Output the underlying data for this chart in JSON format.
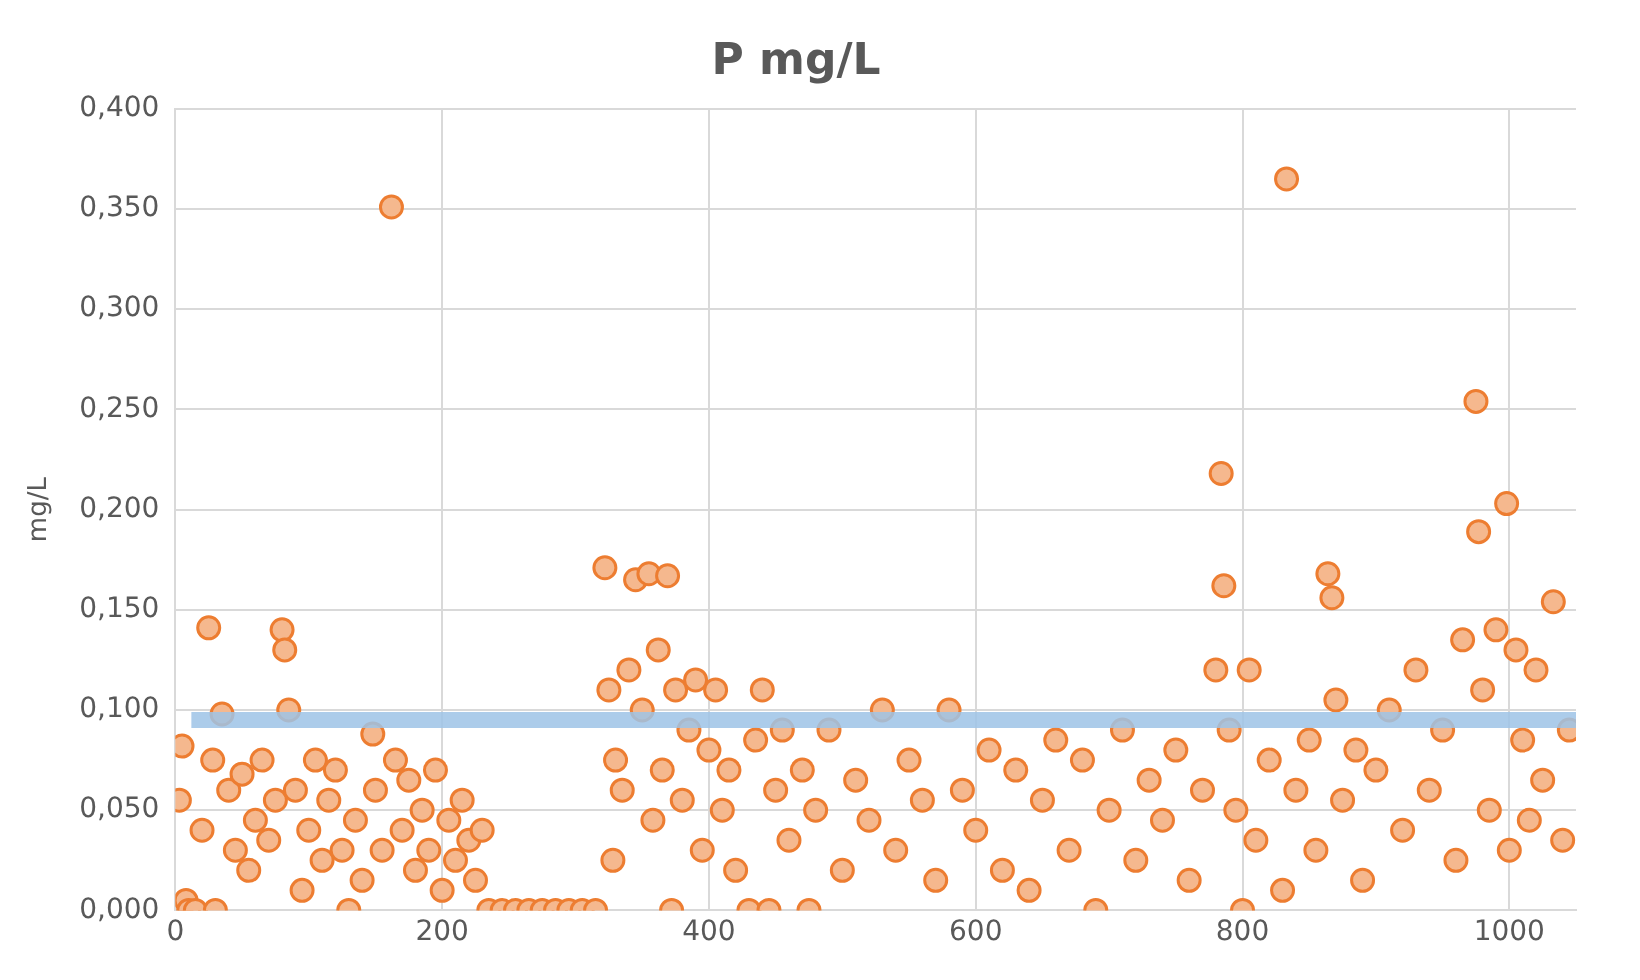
{
  "chart_data": {
    "type": "scatter",
    "title": "P mg/L",
    "ylabel": "mg/L",
    "marker": "circle",
    "grid": true,
    "legend": false,
    "xlim": [
      0,
      1050
    ],
    "xticks": [
      0,
      200,
      400,
      600,
      800,
      1000
    ],
    "ylim": [
      0,
      0.4
    ],
    "yticks": [
      {
        "value": 0,
        "label": "0,000"
      },
      {
        "value": 0.05,
        "label": "0,050"
      },
      {
        "value": 0.1,
        "label": "0,100"
      },
      {
        "value": 0.15,
        "label": "0,150"
      },
      {
        "value": 0.2,
        "label": "0,200"
      },
      {
        "value": 0.25,
        "label": "0,250"
      },
      {
        "value": 0.3,
        "label": "0,300"
      },
      {
        "value": 0.35,
        "label": "0,350"
      },
      {
        "value": 0.4,
        "label": "0,400"
      }
    ],
    "ref_lines": [
      {
        "axis": "y",
        "value": 0.095,
        "color": "#9dc3e6"
      }
    ],
    "series": [
      {
        "color": "#ed7d31",
        "x": [
          3,
          5,
          8,
          10,
          15,
          20,
          25,
          28,
          30,
          35,
          40,
          45,
          50,
          55,
          60,
          65,
          70,
          75,
          80,
          82,
          85,
          90,
          95,
          100,
          105,
          110,
          115,
          120,
          125,
          130,
          135,
          140,
          148,
          150,
          155,
          162,
          165,
          170,
          175,
          180,
          185,
          190,
          195,
          200,
          205,
          210,
          215,
          220,
          225,
          230,
          235,
          245,
          255,
          265,
          275,
          285,
          295,
          305,
          315,
          322,
          325,
          328,
          330,
          335,
          340,
          345,
          350,
          355,
          358,
          362,
          365,
          369,
          372,
          375,
          380,
          385,
          390,
          395,
          400,
          405,
          410,
          415,
          420,
          430,
          435,
          440,
          445,
          450,
          455,
          460,
          470,
          475,
          480,
          490,
          500,
          510,
          520,
          530,
          540,
          550,
          560,
          570,
          580,
          590,
          600,
          610,
          620,
          630,
          640,
          650,
          660,
          670,
          680,
          690,
          700,
          710,
          720,
          730,
          740,
          750,
          760,
          770,
          780,
          784,
          786,
          790,
          795,
          800,
          805,
          810,
          820,
          830,
          833,
          840,
          850,
          855,
          864,
          867,
          870,
          875,
          885,
          890,
          900,
          910,
          920,
          930,
          940,
          950,
          960,
          965,
          975,
          977,
          980,
          985,
          990,
          998,
          1000,
          1005,
          1010,
          1015,
          1020,
          1025,
          1033,
          1040,
          1045
        ],
        "values": [
          0.055,
          0.082,
          0.005,
          0,
          0,
          0.04,
          0.141,
          0.075,
          0,
          0.098,
          0.06,
          0.03,
          0.068,
          0.02,
          0.045,
          0.075,
          0.035,
          0.055,
          0.14,
          0.13,
          0.1,
          0.06,
          0.01,
          0.04,
          0.075,
          0.025,
          0.055,
          0.07,
          0.03,
          0,
          0.045,
          0.015,
          0.088,
          0.06,
          0.03,
          0.351,
          0.075,
          0.04,
          0.065,
          0.02,
          0.05,
          0.03,
          0.07,
          0.01,
          0.045,
          0.025,
          0.055,
          0.035,
          0.015,
          0.04,
          0,
          0,
          0,
          0,
          0,
          0,
          0,
          0,
          0,
          0.171,
          0.11,
          0.025,
          0.075,
          0.06,
          0.12,
          0.165,
          0.1,
          0.168,
          0.045,
          0.13,
          0.07,
          0.167,
          0,
          0.11,
          0.055,
          0.09,
          0.115,
          0.03,
          0.08,
          0.11,
          0.05,
          0.07,
          0.02,
          0,
          0.085,
          0.11,
          0,
          0.06,
          0.09,
          0.035,
          0.07,
          0,
          0.05,
          0.09,
          0.02,
          0.065,
          0.045,
          0.1,
          0.03,
          0.075,
          0.055,
          0.015,
          0.1,
          0.06,
          0.04,
          0.08,
          0.02,
          0.07,
          0.01,
          0.055,
          0.085,
          0.03,
          0.075,
          0,
          0.05,
          0.09,
          0.025,
          0.065,
          0.045,
          0.08,
          0.015,
          0.06,
          0.12,
          0.218,
          0.162,
          0.09,
          0.05,
          0,
          0.12,
          0.035,
          0.075,
          0.01,
          0.365,
          0.06,
          0.085,
          0.03,
          0.168,
          0.156,
          0.105,
          0.055,
          0.08,
          0.015,
          0.07,
          0.1,
          0.04,
          0.12,
          0.06,
          0.09,
          0.025,
          0.135,
          0.254,
          0.189,
          0.11,
          0.05,
          0.14,
          0.203,
          0.03,
          0.13,
          0.085,
          0.045,
          0.12,
          0.065,
          0.154,
          0.035,
          0.09
        ]
      }
    ]
  }
}
